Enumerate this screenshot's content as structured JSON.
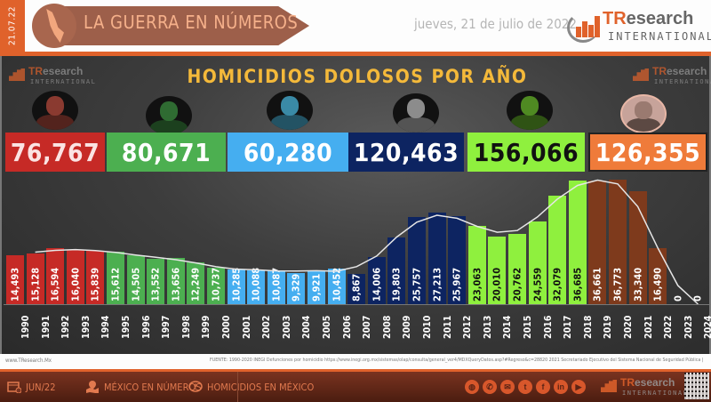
{
  "header": {
    "date_strip": "21.07.22",
    "banner_title": "LA GUERRA EN NÚMEROS",
    "date_text": "jueves, 21 de julio de 2022",
    "logo": {
      "brand_primary": "TR",
      "brand_secondary": "esearch",
      "subtitle": "INTERNATIONAL"
    }
  },
  "panel": {
    "title": "HOMICIDIOS DOLOSOS POR AÑO",
    "mini_logo": {
      "brand_primary": "TR",
      "brand_secondary": "esearch",
      "subtitle": "INTERNATIONAL"
    }
  },
  "presidents": [
    {
      "total": "76,767",
      "color": "#c62a26",
      "text_color": "#fbe3e3",
      "avatar_tint": "#8a3a30"
    },
    {
      "total": "80,671",
      "color": "#4caf50",
      "text_color": "#ffffff",
      "avatar_tint": "#2f6b32"
    },
    {
      "total": "60,280",
      "color": "#45aef0",
      "text_color": "#ffffff",
      "avatar_tint": "#3a8aa6"
    },
    {
      "total": "120,463",
      "color": "#0d2461",
      "text_color": "#ffffff",
      "avatar_tint": "#8c8c8c"
    },
    {
      "total": "156,066",
      "color": "#8ff03e",
      "text_color": "#111111",
      "avatar_tint": "#4f8a22"
    },
    {
      "total": "126,355",
      "color": "#ef7b3a",
      "text_color": "#ffffff",
      "avatar_tint": "#9a7a70"
    }
  ],
  "chart_data": {
    "type": "bar",
    "title": "HOMICIDIOS DOLOSOS POR AÑO",
    "xlabel": "",
    "ylabel": "",
    "ylim": [
      0,
      40000
    ],
    "grid": false,
    "legend": "none",
    "categories": [
      "1990",
      "1991",
      "1992",
      "1993",
      "1994",
      "1995",
      "1996",
      "1997",
      "1998",
      "1999",
      "2000",
      "2001",
      "2002",
      "2003",
      "2004",
      "2005",
      "2006",
      "2007",
      "2008",
      "2009",
      "2010",
      "2011",
      "2012",
      "2013",
      "2014",
      "2015",
      "2016",
      "2017",
      "2018",
      "2019",
      "2020",
      "2021",
      "2022",
      "2023",
      "2024"
    ],
    "values": [
      14493,
      15128,
      16594,
      16040,
      15839,
      15612,
      14505,
      13552,
      13656,
      12249,
      10737,
      10285,
      10088,
      10087,
      9329,
      9921,
      10452,
      8867,
      14006,
      19803,
      25757,
      27213,
      25967,
      23063,
      20010,
      20762,
      24559,
      32079,
      36685,
      36661,
      36773,
      33340,
      16490,
      0,
      0
    ],
    "labels": [
      "14,493",
      "15,128",
      "16,594",
      "16,040",
      "15,839",
      "15,612",
      "14,505",
      "13,552",
      "13,656",
      "12,249",
      "10,737",
      "10,285",
      "10,088",
      "10,087",
      "9,329",
      "9,921",
      "10,452",
      "8,867",
      "14,006",
      "19,803",
      "25,757",
      "27,213",
      "25,967",
      "23,063",
      "20,010",
      "20,762",
      "24,559",
      "32,079",
      "36,685",
      "36,661",
      "36,773",
      "33,340",
      "16,490",
      "0",
      "0"
    ],
    "period_groups": [
      {
        "years": "1990-1994",
        "total": "76,767",
        "color": "#c62a26"
      },
      {
        "years": "1995-2000",
        "total": "80,671",
        "color": "#4caf50"
      },
      {
        "years": "2001-2006",
        "total": "60,280",
        "color": "#45aef0"
      },
      {
        "years": "2007-2012",
        "total": "120,463",
        "color": "#0d2461"
      },
      {
        "years": "2013-2018",
        "total": "156,066",
        "color": "#8ff03e"
      },
      {
        "years": "2019-2024",
        "total": "126,355",
        "color": "#7e3a1c"
      }
    ],
    "bar_colors": [
      "#c62a26",
      "#c62a26",
      "#c62a26",
      "#c62a26",
      "#c62a26",
      "#4caf50",
      "#4caf50",
      "#4caf50",
      "#4caf50",
      "#4caf50",
      "#4caf50",
      "#45aef0",
      "#45aef0",
      "#45aef0",
      "#45aef0",
      "#45aef0",
      "#45aef0",
      "#0d2461",
      "#0d2461",
      "#0d2461",
      "#0d2461",
      "#0d2461",
      "#0d2461",
      "#8ff03e",
      "#8ff03e",
      "#8ff03e",
      "#8ff03e",
      "#8ff03e",
      "#8ff03e",
      "#7e3a1c",
      "#7e3a1c",
      "#7e3a1c",
      "#7e3a1c",
      "#7e3a1c",
      "#7e3a1c"
    ],
    "label_colors": [
      "#fff",
      "#fff",
      "#fff",
      "#fff",
      "#fff",
      "#fff",
      "#fff",
      "#fff",
      "#fff",
      "#fff",
      "#fff",
      "#fff",
      "#fff",
      "#fff",
      "#fff",
      "#fff",
      "#fff",
      "#fff",
      "#fff",
      "#fff",
      "#fff",
      "#fff",
      "#fff",
      "#111",
      "#111",
      "#111",
      "#111",
      "#111",
      "#111",
      "#fff",
      "#fff",
      "#fff",
      "#fff",
      "#fff",
      "#fff"
    ],
    "trendline": "smoothed moving average (white line)"
  },
  "source": {
    "site": "www.TResearch.Mx",
    "text": "FUENTE: 1990-2020 INEGI Defunciones por homicidio https://www.inegi.org.mx/sistemas/olap/consulta/general_ver4/MDXQueryDatos.asp?#Regreso&c=28820   2021 Secretariado Ejecutivo del Sistema Nacional de Seguridad Pública |"
  },
  "footer": {
    "items": [
      {
        "label": "JUN/22",
        "icon": "calendar-icon"
      },
      {
        "label": "MÉXICO EN NÚMEROS",
        "icon": "map-pin-icon"
      },
      {
        "label": "HOMICIDIOS EN MÉXICO",
        "icon": "chat-alert-icon"
      }
    ],
    "social": [
      {
        "name": "web",
        "glyph": "◍"
      },
      {
        "name": "phone",
        "glyph": "✆"
      },
      {
        "name": "email",
        "glyph": "✉"
      },
      {
        "name": "twitter",
        "glyph": "t"
      },
      {
        "name": "facebook",
        "glyph": "f"
      },
      {
        "name": "linkedin",
        "glyph": "in"
      },
      {
        "name": "youtube",
        "glyph": "▶"
      }
    ],
    "logo": {
      "brand_primary": "TR",
      "brand_secondary": "esearch",
      "subtitle": "INTERNATIONAL"
    }
  }
}
